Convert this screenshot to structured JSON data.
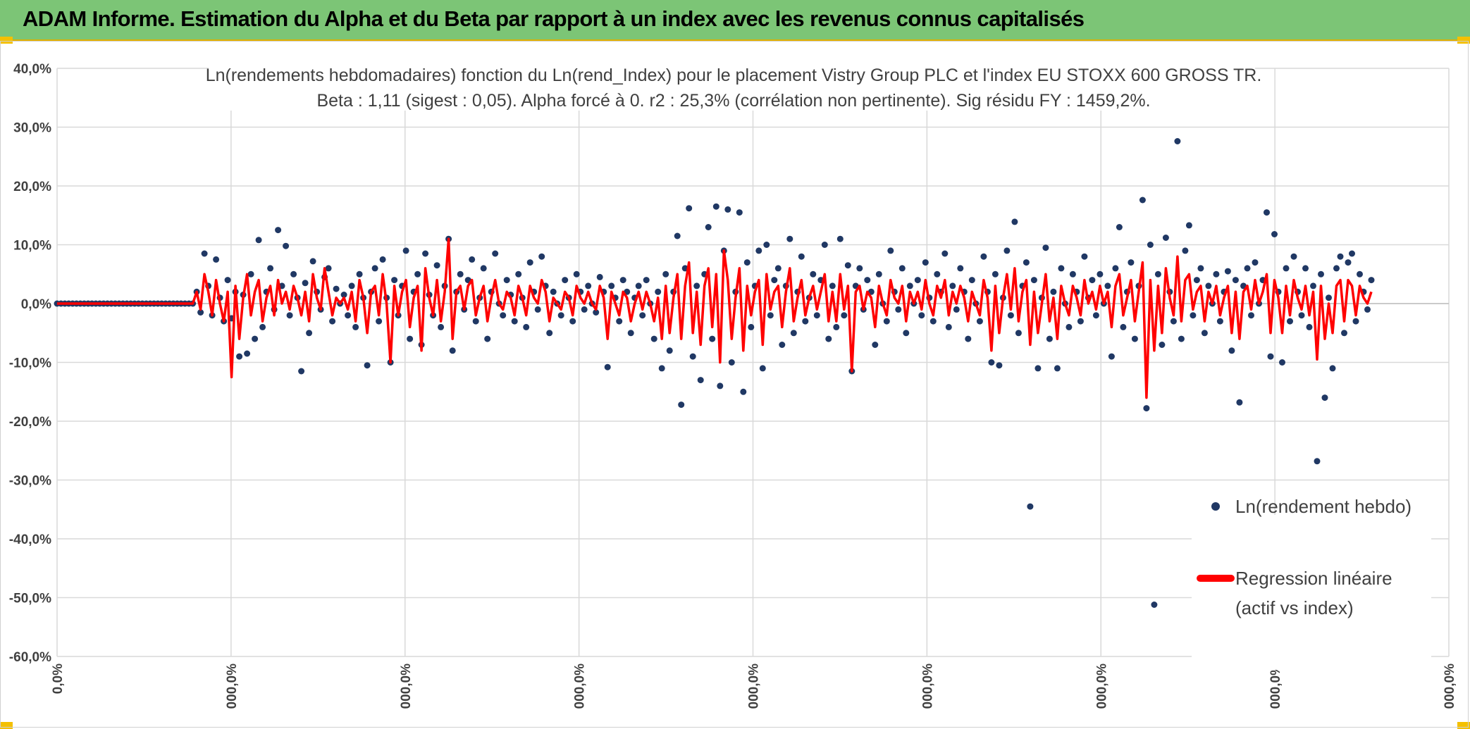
{
  "header": {
    "title": "ADAM Informe. Estimation du Alpha et du Beta par rapport à un index avec les revenus connus capitalisés"
  },
  "colors": {
    "header_bg": "#7cc576",
    "points": "#203864",
    "regression": "#ff0000",
    "grid": "#d9d9d9"
  },
  "chart_data": {
    "type": "scatter",
    "title": "Ln(rendements hebdomadaires) fonction du Ln(rend_Index) pour le placement Vistry Group PLC et l'index EU STOXX 600 GROSS TR.",
    "subtitle": "Beta : 1,11 (sigest : 0,05). Alpha forcé à 0. r2 : 25,3% (corrélation non pertinente). Sig résidu FY : 1459,2%.",
    "xlabel": "",
    "ylabel": "",
    "ylim": [
      -0.6,
      0.4
    ],
    "y_tick_labels": [
      "40,0%",
      "30,0%",
      "20,0%",
      "10,0%",
      "0,0%",
      "-10,0%",
      "-20,0%",
      "-30,0%",
      "-40,0%",
      "-50,0%",
      "-60,0%"
    ],
    "x_tick_labels": [
      "0,0%",
      "000,0%",
      "000,0%",
      "000,0%",
      "000,0%",
      "000,0%",
      "000,0%",
      "000,0%",
      "000,0%"
    ],
    "grid": true,
    "legend_position": "right",
    "series": [
      {
        "name": "Ln(rendement hebdo)",
        "kind": "markers",
        "color": "#203864",
        "y": [
          0,
          0,
          0,
          0,
          0,
          0,
          0,
          0,
          0,
          0,
          0,
          0,
          0,
          0,
          0,
          0,
          0,
          0,
          0,
          0,
          0,
          0,
          0,
          0,
          0,
          0,
          0,
          0,
          0,
          0,
          0,
          0,
          0,
          0,
          0,
          0,
          0.02,
          -0.015,
          0.085,
          0.03,
          -0.02,
          0.075,
          0.01,
          -0.03,
          0.04,
          -0.025,
          0.02,
          -0.09,
          0.015,
          -0.085,
          0.05,
          -0.06,
          0.108,
          -0.04,
          0.02,
          0.06,
          -0.01,
          0.125,
          0.03,
          0.098,
          -0.02,
          0.05,
          0.01,
          -0.115,
          0.035,
          -0.05,
          0.072,
          0.02,
          -0.01,
          0.045,
          0.06,
          -0.03,
          0.025,
          0.0,
          0.015,
          -0.02,
          0.03,
          -0.04,
          0.05,
          0.01,
          -0.105,
          0.02,
          0.06,
          -0.03,
          0.075,
          0.01,
          -0.1,
          0.04,
          -0.02,
          0.03,
          0.09,
          -0.06,
          0.02,
          0.05,
          -0.07,
          0.085,
          0.015,
          -0.02,
          0.065,
          -0.04,
          0.03,
          0.11,
          -0.08,
          0.02,
          0.05,
          -0.01,
          0.04,
          0.075,
          -0.03,
          0.01,
          0.06,
          -0.06,
          0.02,
          0.085,
          0.0,
          -0.02,
          0.04,
          0.015,
          -0.03,
          0.05,
          0.01,
          -0.04,
          0.07,
          0.02,
          -0.01,
          0.08,
          0.03,
          -0.05,
          0.02,
          0.0,
          -0.02,
          0.04,
          0.01,
          -0.03,
          0.05,
          0.02,
          -0.01,
          0.03,
          0.0,
          -0.015,
          0.045,
          0.02,
          -0.108,
          0.03,
          0.01,
          -0.03,
          0.04,
          0.02,
          -0.05,
          0.01,
          0.03,
          -0.02,
          0.04,
          0.0,
          -0.06,
          0.02,
          -0.11,
          0.05,
          -0.08,
          0.02,
          0.115,
          -0.172,
          0.06,
          0.162,
          -0.09,
          0.03,
          -0.13,
          0.05,
          0.13,
          -0.06,
          0.165,
          -0.14,
          0.09,
          0.16,
          -0.1,
          0.02,
          0.155,
          -0.15,
          0.07,
          -0.04,
          0.03,
          0.09,
          -0.11,
          0.1,
          -0.02,
          0.04,
          0.06,
          -0.07,
          0.03,
          0.11,
          -0.05,
          0.02,
          0.08,
          -0.03,
          0.01,
          0.05,
          -0.02,
          0.04,
          0.1,
          -0.06,
          0.03,
          -0.04,
          0.11,
          -0.02,
          0.065,
          -0.115,
          0.03,
          0.06,
          -0.01,
          0.04,
          0.02,
          -0.07,
          0.05,
          0.0,
          -0.03,
          0.09,
          0.02,
          -0.01,
          0.06,
          -0.05,
          0.03,
          0.0,
          0.04,
          -0.02,
          0.07,
          0.01,
          -0.03,
          0.05,
          0.02,
          0.085,
          -0.04,
          0.03,
          -0.01,
          0.06,
          0.02,
          -0.06,
          0.04,
          0.0,
          -0.03,
          0.08,
          0.02,
          -0.1,
          0.05,
          -0.105,
          0.01,
          0.09,
          -0.02,
          0.139,
          -0.05,
          0.03,
          0.07,
          -0.345,
          0.04,
          -0.11,
          0.01,
          0.095,
          -0.06,
          0.02,
          -0.11,
          0.06,
          0.0,
          -0.04,
          0.05,
          0.02,
          -0.03,
          0.08,
          0.01,
          0.04,
          -0.02,
          0.05,
          0.0,
          0.03,
          -0.09,
          0.06,
          0.13,
          -0.04,
          0.02,
          0.07,
          -0.06,
          0.03,
          0.176,
          -0.178,
          0.1,
          -0.512,
          0.05,
          -0.07,
          0.112,
          0.02,
          -0.03,
          0.276,
          -0.06,
          0.09,
          0.133,
          -0.02,
          0.04,
          0.06,
          -0.05,
          0.03,
          0.0,
          0.05,
          -0.03,
          0.02,
          0.055,
          -0.08,
          0.04,
          -0.168,
          0.03,
          0.06,
          -0.02,
          0.07,
          0.0,
          0.04,
          0.155,
          -0.09,
          0.118,
          0.02,
          -0.1,
          0.06,
          -0.03,
          0.08,
          0.02,
          -0.02,
          0.06,
          -0.04,
          0.03,
          -0.268,
          0.05,
          -0.16,
          0.01,
          -0.11,
          0.06,
          0.08,
          -0.05,
          0.07,
          0.085,
          -0.03,
          0.05,
          0.02,
          -0.01,
          0.04
        ]
      },
      {
        "name": "Regression linéaire (actif vs index)",
        "kind": "line",
        "color": "#ff0000",
        "y": [
          0,
          0,
          0,
          0,
          0,
          0,
          0,
          0,
          0,
          0,
          0,
          0,
          0,
          0,
          0,
          0,
          0,
          0,
          0,
          0,
          0,
          0,
          0,
          0,
          0,
          0,
          0,
          0,
          0,
          0,
          0,
          0,
          0,
          0,
          0,
          0,
          0.02,
          -0.01,
          0.05,
          0.02,
          -0.02,
          0.04,
          0.0,
          -0.03,
          0.02,
          -0.125,
          0.03,
          -0.06,
          0.01,
          0.05,
          -0.02,
          0.02,
          0.04,
          -0.03,
          0.01,
          0.03,
          -0.02,
          0.04,
          0.0,
          0.02,
          -0.01,
          0.03,
          0.01,
          -0.02,
          0.02,
          -0.03,
          0.05,
          0.01,
          -0.01,
          0.06,
          0.02,
          -0.02,
          0.01,
          0.0,
          0.01,
          -0.01,
          0.02,
          -0.03,
          0.04,
          0.01,
          -0.05,
          0.02,
          0.03,
          -0.02,
          0.05,
          0.0,
          -0.1,
          0.03,
          -0.02,
          0.02,
          0.04,
          -0.04,
          0.01,
          0.03,
          -0.08,
          0.06,
          0.01,
          -0.02,
          0.04,
          -0.03,
          0.02,
          0.11,
          -0.06,
          0.02,
          0.03,
          -0.01,
          0.03,
          0.04,
          -0.02,
          0.01,
          0.03,
          -0.03,
          0.01,
          0.04,
          0.0,
          -0.01,
          0.02,
          0.01,
          -0.02,
          0.03,
          0.01,
          -0.02,
          0.03,
          0.01,
          0.0,
          0.04,
          0.02,
          -0.03,
          0.01,
          0.0,
          -0.01,
          0.02,
          0.01,
          -0.02,
          0.03,
          0.01,
          0.0,
          0.02,
          0.0,
          -0.01,
          0.03,
          0.01,
          -0.06,
          0.02,
          0.0,
          -0.02,
          0.02,
          0.01,
          -0.03,
          0.0,
          0.02,
          -0.01,
          0.02,
          0.0,
          -0.03,
          0.01,
          -0.06,
          0.03,
          -0.05,
          0.01,
          0.05,
          -0.06,
          0.03,
          0.07,
          -0.05,
          0.02,
          -0.07,
          0.03,
          0.06,
          -0.04,
          0.05,
          -0.1,
          0.09,
          0.04,
          -0.06,
          0.01,
          0.06,
          -0.08,
          0.03,
          -0.02,
          0.02,
          0.04,
          -0.07,
          0.05,
          -0.01,
          0.02,
          0.03,
          -0.04,
          0.02,
          0.06,
          -0.03,
          0.01,
          0.04,
          -0.02,
          0.01,
          0.03,
          -0.01,
          0.02,
          0.05,
          -0.03,
          0.02,
          -0.03,
          0.05,
          -0.01,
          0.03,
          -0.115,
          0.02,
          0.03,
          -0.01,
          0.02,
          0.01,
          -0.04,
          0.03,
          0.0,
          -0.02,
          0.04,
          0.01,
          0.0,
          0.03,
          -0.03,
          0.02,
          0.0,
          0.02,
          -0.01,
          0.04,
          0.0,
          -0.02,
          0.03,
          0.01,
          0.04,
          -0.02,
          0.02,
          0.0,
          0.03,
          0.01,
          -0.03,
          0.02,
          0.0,
          -0.02,
          0.04,
          0.01,
          -0.08,
          0.03,
          -0.05,
          0.01,
          0.05,
          -0.01,
          0.06,
          -0.03,
          0.02,
          0.04,
          -0.07,
          0.02,
          -0.05,
          0.0,
          0.05,
          -0.03,
          0.01,
          -0.06,
          0.03,
          0.0,
          -0.02,
          0.03,
          0.01,
          -0.02,
          0.04,
          0.0,
          0.02,
          -0.01,
          0.03,
          0.0,
          0.02,
          -0.04,
          0.03,
          0.05,
          -0.02,
          0.01,
          0.04,
          -0.03,
          0.02,
          0.07,
          -0.16,
          0.04,
          -0.08,
          0.03,
          -0.05,
          0.06,
          0.01,
          -0.02,
          0.08,
          -0.03,
          0.04,
          0.05,
          -0.01,
          0.02,
          0.03,
          -0.03,
          0.02,
          0.0,
          0.03,
          -0.02,
          0.01,
          0.03,
          -0.05,
          0.02,
          -0.06,
          0.02,
          0.03,
          -0.01,
          0.04,
          0.0,
          0.02,
          0.05,
          -0.05,
          0.04,
          0.01,
          -0.05,
          0.03,
          -0.02,
          0.04,
          0.01,
          -0.01,
          0.03,
          -0.02,
          0.02,
          -0.095,
          0.03,
          -0.06,
          0.0,
          -0.05,
          0.03,
          0.04,
          -0.03,
          0.04,
          0.03,
          -0.02,
          0.03,
          0.01,
          0.0,
          0.02
        ]
      }
    ]
  }
}
